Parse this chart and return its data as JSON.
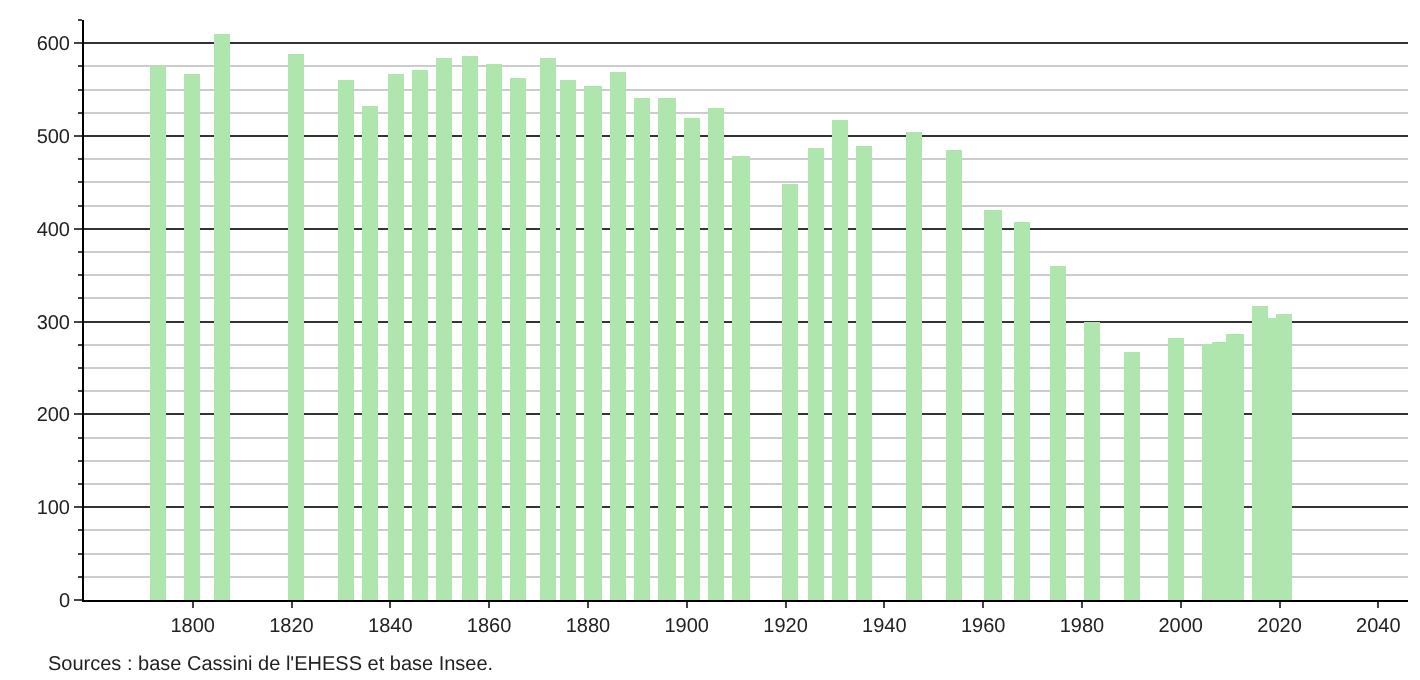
{
  "chart_data": {
    "type": "bar",
    "x": [
      1793,
      1800,
      1806,
      1821,
      1831,
      1836,
      1841,
      1846,
      1851,
      1856,
      1861,
      1866,
      1872,
      1876,
      1881,
      1886,
      1891,
      1896,
      1901,
      1906,
      1911,
      1921,
      1926,
      1931,
      1936,
      1946,
      1954,
      1962,
      1968,
      1975,
      1982,
      1990,
      1999,
      2006,
      2008,
      2011,
      2016,
      2019,
      2021
    ],
    "values": [
      576,
      566,
      609,
      589,
      560,
      532,
      566,
      571,
      584,
      587,
      577,
      562,
      584,
      560,
      553,
      568,
      540,
      542,
      519,
      530,
      479,
      449,
      488,
      517,
      490,
      504,
      484,
      421,
      408,
      360,
      300,
      267,
      283,
      275,
      277,
      287,
      316,
      304,
      309
    ],
    "color": "#aee6ae",
    "xlim": [
      1778,
      2046
    ],
    "xticks": [
      1800,
      1820,
      1840,
      1860,
      1880,
      1900,
      1920,
      1940,
      1960,
      1980,
      2000,
      2020,
      2040
    ],
    "ylim": [
      0,
      625
    ],
    "yticks": [
      0,
      {
        "value": 25,
        "label": null
      },
      {
        "value": 50,
        "label": null
      },
      {
        "value": 75,
        "label": null
      },
      100,
      {
        "value": 125,
        "label": null
      },
      {
        "value": 150,
        "label": null
      },
      {
        "value": 175,
        "label": null
      },
      200,
      {
        "value": 225,
        "label": null
      },
      {
        "value": 250,
        "label": null
      },
      {
        "value": 275,
        "label": null
      },
      300,
      {
        "value": 325,
        "label": null
      },
      {
        "value": 350,
        "label": null
      },
      {
        "value": 375,
        "label": null
      },
      400,
      {
        "value": 425,
        "label": null
      },
      {
        "value": 450,
        "label": null
      },
      {
        "value": 475,
        "label": null
      },
      500,
      {
        "value": 525,
        "label": null
      },
      {
        "value": 550,
        "label": null
      },
      {
        "value": 575,
        "label": null
      },
      600,
      {
        "value": 625,
        "label": null
      }
    ],
    "grid": "y",
    "annotations": [
      "Sources : base Cassini de l'EHESS et base Insee."
    ]
  }
}
